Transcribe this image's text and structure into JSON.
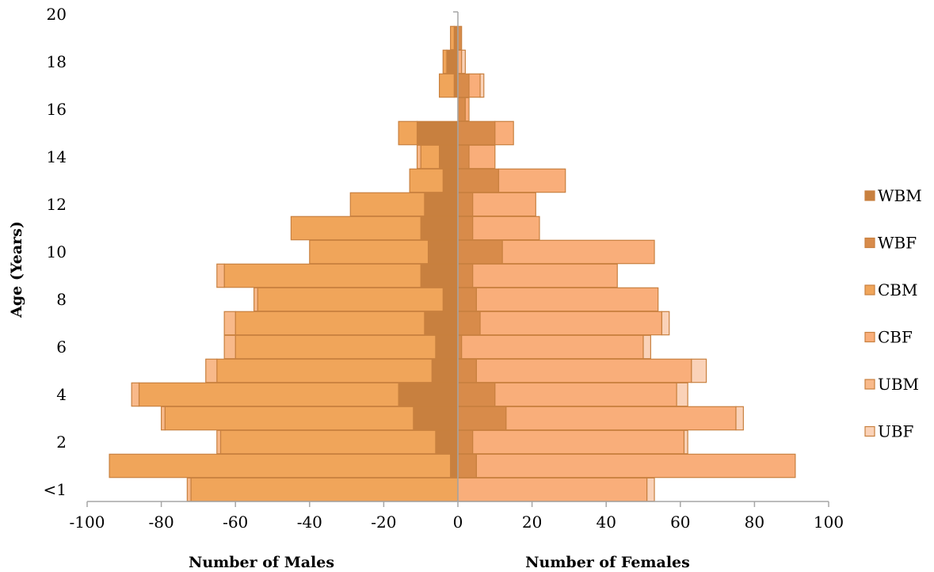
{
  "chart_data": {
    "type": "bar",
    "orientation": "horizontal-stacked-pyramid",
    "ylabel": "Age (Years)",
    "xlabel_left": "Number of Males",
    "xlabel_right": "Number of Females",
    "xlim": [
      -100,
      100
    ],
    "xticks": [
      -100,
      -80,
      -60,
      -40,
      -20,
      0,
      20,
      40,
      60,
      80,
      100
    ],
    "xtick_labels": [
      "-100",
      "-80",
      "-60",
      "-40",
      "-20",
      "0",
      "20",
      "40",
      "60",
      "80",
      "100"
    ],
    "yticks": [
      {
        "age": 0,
        "label": "<1"
      },
      {
        "age": 2,
        "label": "2"
      },
      {
        "age": 4,
        "label": "4"
      },
      {
        "age": 6,
        "label": "6"
      },
      {
        "age": 8,
        "label": "8"
      },
      {
        "age": 10,
        "label": "10"
      },
      {
        "age": 12,
        "label": "12"
      },
      {
        "age": 14,
        "label": "14"
      },
      {
        "age": 16,
        "label": "16"
      },
      {
        "age": 18,
        "label": "18"
      },
      {
        "age": 20,
        "label": "20"
      }
    ],
    "ages": [
      0,
      1,
      2,
      3,
      4,
      5,
      6,
      7,
      8,
      9,
      10,
      11,
      12,
      13,
      14,
      15,
      16,
      17,
      18,
      19
    ],
    "legend_position": "right",
    "grid": false,
    "series": [
      {
        "name": "WBM",
        "side": "male",
        "color": "#C8803F",
        "values": [
          0,
          -2,
          -6,
          -12,
          -16,
          -7,
          -6,
          -9,
          -4,
          -10,
          -8,
          -10,
          -9,
          -4,
          -5,
          -11,
          0,
          -1,
          -3,
          -1
        ]
      },
      {
        "name": "WBF",
        "side": "female",
        "color": "#D88B4A",
        "values": [
          0,
          5,
          4,
          13,
          10,
          5,
          1,
          6,
          5,
          4,
          12,
          4,
          4,
          11,
          3,
          10,
          2,
          3,
          0,
          1
        ]
      },
      {
        "name": "CBM",
        "side": "male",
        "color": "#F0A55A",
        "values": [
          -72,
          -92,
          -58,
          -67,
          -70,
          -58,
          -54,
          -51,
          -50,
          -53,
          -32,
          -35,
          -20,
          -9,
          -5,
          -5,
          0,
          -4,
          -1,
          -1
        ]
      },
      {
        "name": "CBF",
        "side": "female",
        "color": "#F9AE7A",
        "values": [
          51,
          86,
          57,
          62,
          49,
          58,
          49,
          49,
          49,
          39,
          41,
          18,
          17,
          18,
          7,
          5,
          1,
          3,
          1,
          0
        ]
      },
      {
        "name": "UBM",
        "side": "male",
        "color": "#F8B98A",
        "values": [
          -1,
          0,
          -1,
          -1,
          -2,
          -3,
          -3,
          -3,
          -1,
          -2,
          0,
          0,
          0,
          0,
          -1,
          0,
          0,
          0,
          0,
          0
        ]
      },
      {
        "name": "UBF",
        "side": "female",
        "color": "#FAD2B8",
        "values": [
          2,
          0,
          1,
          2,
          3,
          4,
          2,
          2,
          0,
          0,
          0,
          0,
          0,
          0,
          0,
          0,
          0,
          1,
          1,
          0
        ]
      }
    ]
  }
}
